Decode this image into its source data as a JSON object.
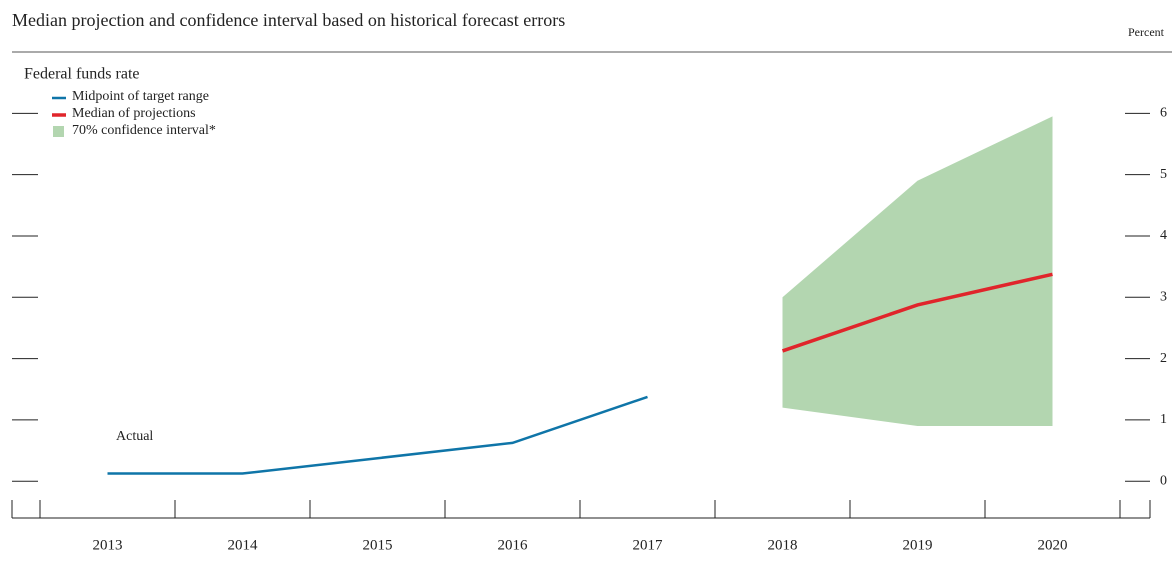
{
  "chart_data": {
    "type": "line",
    "title": "Median projection and confidence interval based on historical forecast errors",
    "subtitle": "Federal funds rate",
    "y_label": "Percent",
    "annotation": "Actual",
    "categories": [
      "2013",
      "2014",
      "2015",
      "2016",
      "2017",
      "2018",
      "2019",
      "2020"
    ],
    "series": [
      {
        "name": "Midpoint of target range",
        "color": "#0f75a8",
        "values": [
          0.125,
          0.125,
          0.375,
          0.625,
          1.375,
          null,
          null,
          null
        ]
      },
      {
        "name": "Median of projections",
        "color": "#e0252b",
        "values": [
          null,
          null,
          null,
          null,
          null,
          2.125,
          2.875,
          3.375
        ]
      }
    ],
    "band": {
      "name": "70% confidence interval*",
      "color": "#b3d6b0",
      "lower": [
        null,
        null,
        null,
        null,
        null,
        1.2,
        0.9,
        0.9
      ],
      "upper": [
        null,
        null,
        null,
        null,
        null,
        3.0,
        4.9,
        5.95
      ]
    },
    "ylim": [
      -0.6,
      7
    ],
    "yticks": [
      0,
      1,
      2,
      3,
      4,
      5,
      6
    ]
  }
}
